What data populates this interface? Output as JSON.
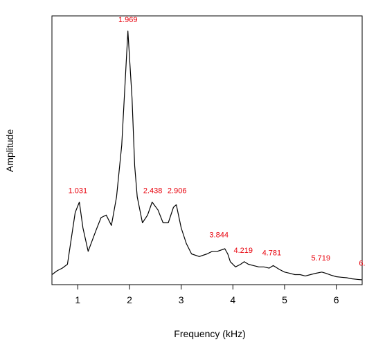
{
  "chart_data": {
    "type": "line",
    "xlabel": "Frequency (kHz)",
    "ylabel": "Amplitude",
    "xlim": [
      0.5,
      6.5
    ],
    "ylim": [
      0,
      1
    ],
    "x_ticks": [
      1,
      2,
      3,
      4,
      5,
      6
    ],
    "x_tick_labels": [
      "1",
      "2",
      "3",
      "4",
      "5",
      "6"
    ],
    "grid": false,
    "line_color": "#000000",
    "label_color": "#e8000b",
    "series": [
      {
        "x": [
          0.5,
          0.6,
          0.7,
          0.8,
          0.875,
          0.95,
          1.031,
          1.1,
          1.2,
          1.35,
          1.45,
          1.55,
          1.65,
          1.75,
          1.85,
          1.969,
          2.05,
          2.1,
          2.15,
          2.25,
          2.35,
          2.438,
          2.55,
          2.65,
          2.75,
          2.85,
          2.906,
          3.0,
          3.1,
          3.2,
          3.35,
          3.5,
          3.6,
          3.7,
          3.844,
          3.9,
          3.95,
          4.05,
          4.15,
          4.219,
          4.3,
          4.4,
          4.5,
          4.6,
          4.7,
          4.781,
          4.9,
          5.0,
          5.1,
          5.2,
          5.3,
          5.4,
          5.5,
          5.6,
          5.719,
          5.8,
          5.9,
          6.0,
          6.1,
          6.2,
          6.3,
          6.4,
          6.5
        ],
        "y": [
          0.02,
          0.035,
          0.045,
          0.06,
          0.16,
          0.26,
          0.3,
          0.2,
          0.11,
          0.19,
          0.24,
          0.25,
          0.21,
          0.32,
          0.52,
          0.96,
          0.7,
          0.44,
          0.32,
          0.22,
          0.25,
          0.3,
          0.27,
          0.22,
          0.22,
          0.28,
          0.29,
          0.2,
          0.14,
          0.1,
          0.09,
          0.1,
          0.11,
          0.11,
          0.12,
          0.1,
          0.07,
          0.05,
          0.06,
          0.07,
          0.06,
          0.055,
          0.05,
          0.05,
          0.045,
          0.055,
          0.04,
          0.03,
          0.025,
          0.02,
          0.02,
          0.015,
          0.02,
          0.025,
          0.03,
          0.025,
          0.018,
          0.012,
          0.01,
          0.008,
          0.004,
          0.002,
          0.0
        ]
      }
    ],
    "annotations": [
      {
        "text": "1.031",
        "x": 1.0,
        "y": 0.3
      },
      {
        "text": "1.969",
        "x": 1.97,
        "y": 0.96
      },
      {
        "text": "2.438",
        "x": 2.45,
        "y": 0.3
      },
      {
        "text": "2.906",
        "x": 2.92,
        "y": 0.3
      },
      {
        "text": "3.844",
        "x": 3.73,
        "y": 0.13
      },
      {
        "text": "4.219",
        "x": 4.2,
        "y": 0.07
      },
      {
        "text": "4.781",
        "x": 4.75,
        "y": 0.06
      },
      {
        "text": "5.719",
        "x": 5.7,
        "y": 0.04
      },
      {
        "text": "6.",
        "x": 6.5,
        "y": 0.02
      }
    ]
  }
}
